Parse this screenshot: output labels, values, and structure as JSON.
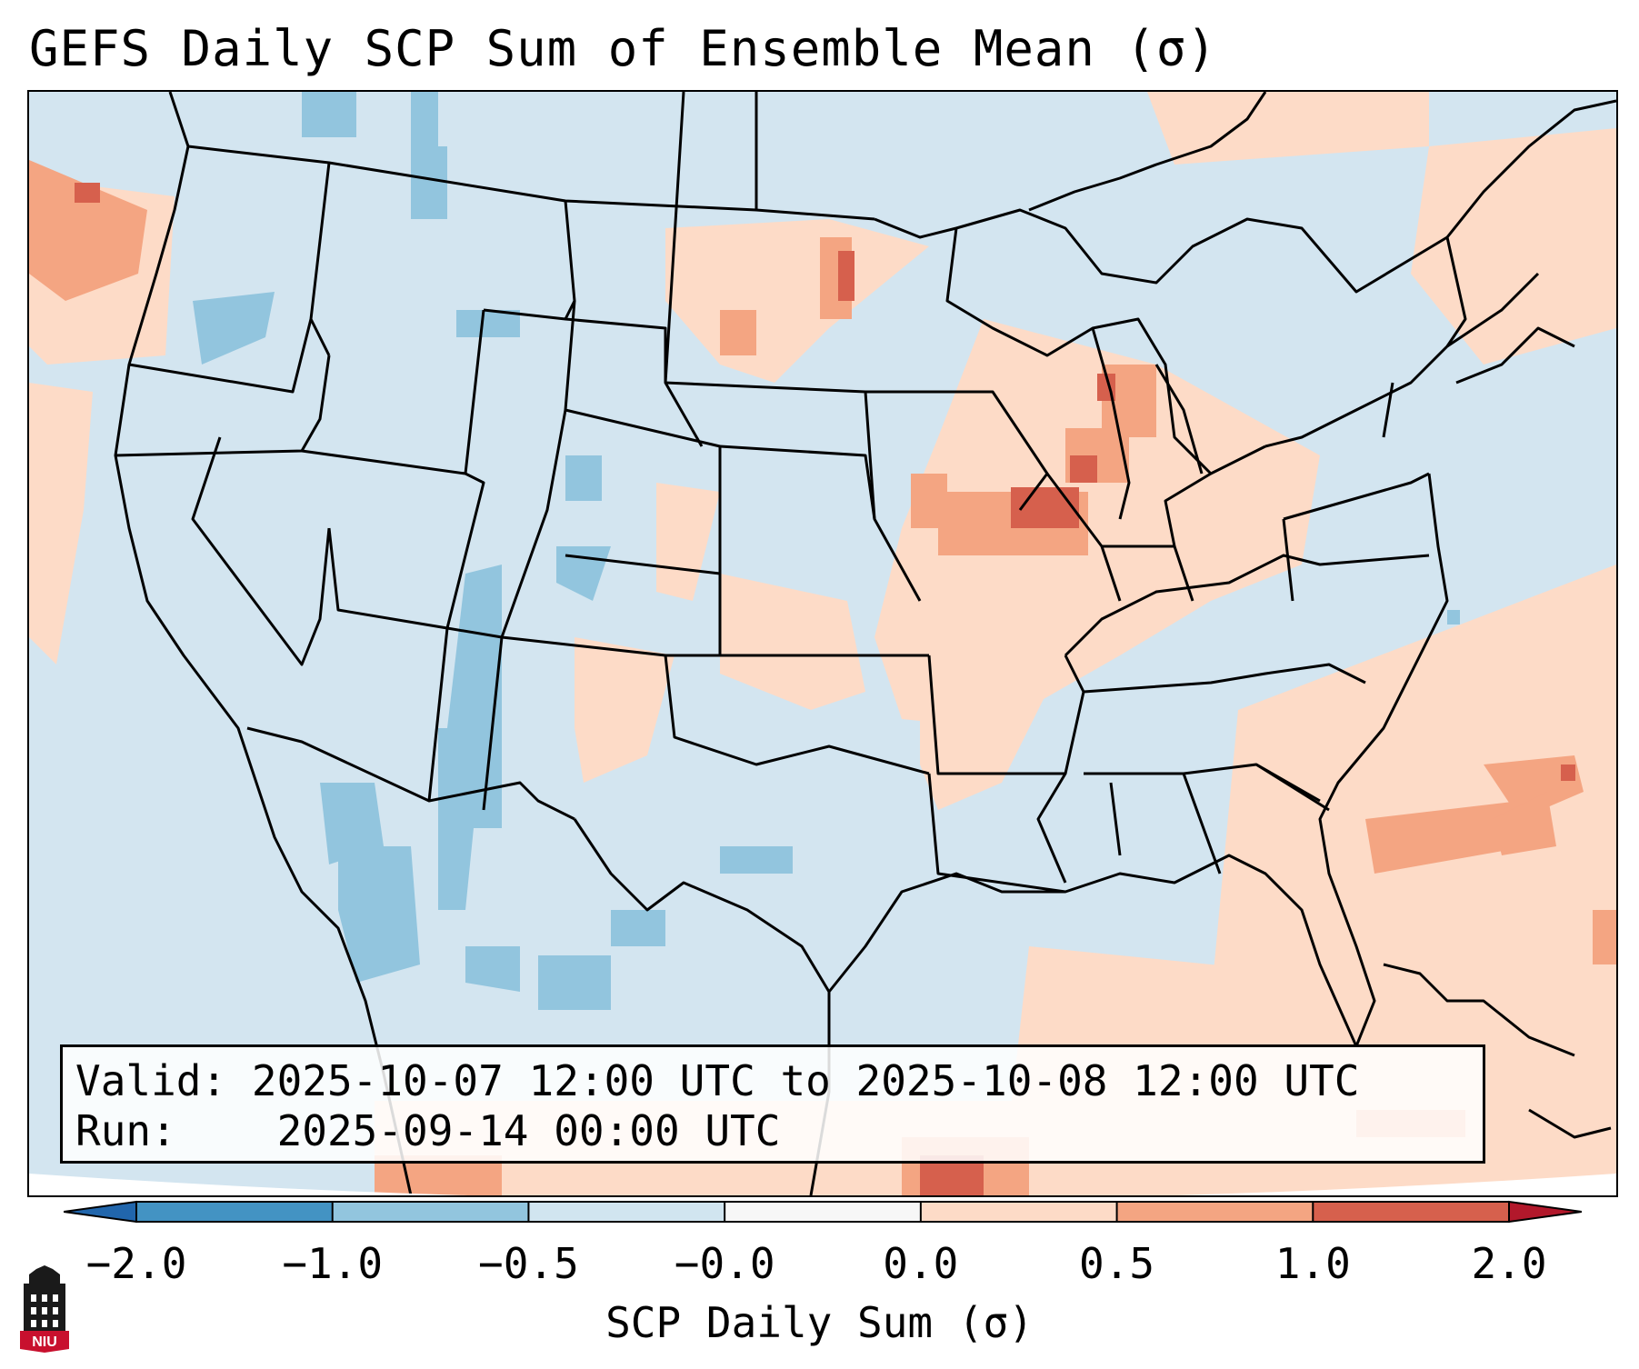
{
  "title": "GEFS Daily SCP Sum of Ensemble Mean (σ)",
  "info": {
    "valid_label": "Valid:",
    "valid_value": "2025-10-07 12:00 UTC to 2025-10-08 12:00 UTC",
    "run_label": "Run:",
    "run_value": "2025-09-14 00:00 UTC"
  },
  "colorbar": {
    "label": "SCP Daily Sum (σ)",
    "ticks": [
      "−2.0",
      "−1.0",
      "−0.5",
      "−0.0",
      "0.0",
      "0.5",
      "1.0",
      "2.0"
    ],
    "colors": [
      "#4393c3",
      "#92c5de",
      "#d1e5f0",
      "#f7f7f7",
      "#fddbc7",
      "#f4a582",
      "#d6604d"
    ],
    "extend_low": "#2166ac",
    "extend_high": "#b2182b"
  },
  "map": {
    "region": "Continental United States",
    "ocean_color": "#d3e5f0",
    "highlight_areas": [
      {
        "name": "Midwest",
        "level": "1.0"
      },
      {
        "name": "Upper Midwest",
        "level": "0.5"
      },
      {
        "name": "Western Atlantic",
        "level": "0.5"
      },
      {
        "name": "Pacific Northwest offshore",
        "level": "0.5"
      },
      {
        "name": "Northern Mexico",
        "level": "-0.5"
      }
    ]
  },
  "logo": {
    "text": "NIU",
    "colors": {
      "shield": "#c8102e",
      "tower": "#1a1a1a"
    }
  }
}
